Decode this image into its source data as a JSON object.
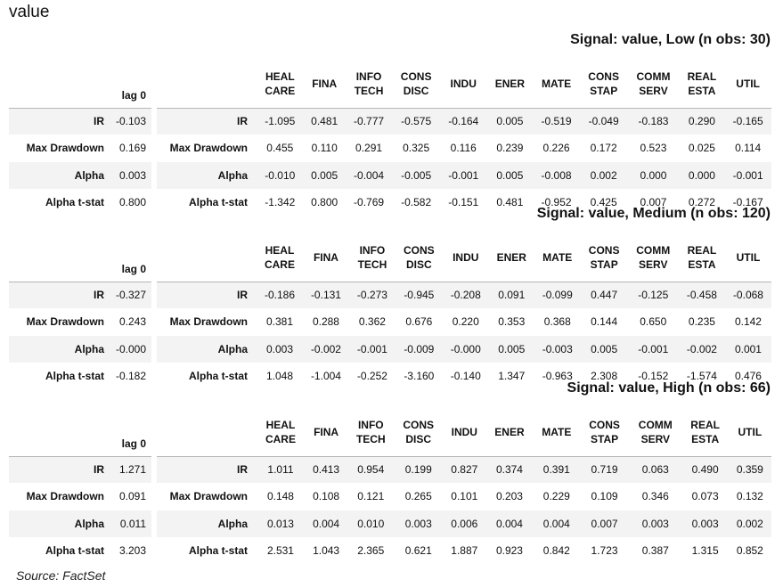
{
  "title": "value",
  "source": "Source: FactSet",
  "columns": {
    "lag": "lag 0",
    "sectors": [
      [
        "HEAL",
        "CARE"
      ],
      [
        "FINA"
      ],
      [
        "INFO",
        "TECH"
      ],
      [
        "CONS",
        "DISC"
      ],
      [
        "INDU"
      ],
      [
        "ENER"
      ],
      [
        "MATE"
      ],
      [
        "CONS",
        "STAP"
      ],
      [
        "COMM",
        "SERV"
      ],
      [
        "REAL",
        "ESTA"
      ],
      [
        "UTIL"
      ]
    ]
  },
  "row_labels": [
    "IR",
    "Max Drawdown",
    "Alpha",
    "Alpha t-stat"
  ],
  "signals": [
    {
      "title": "Signal: value, Low (n obs: 30)",
      "lag": [
        "-0.103",
        "0.169",
        "0.003",
        "0.800"
      ],
      "sectors": [
        [
          "-1.095",
          "0.481",
          "-0.777",
          "-0.575",
          "-0.164",
          "0.005",
          "-0.519",
          "-0.049",
          "-0.183",
          "0.290",
          "-0.165"
        ],
        [
          "0.455",
          "0.110",
          "0.291",
          "0.325",
          "0.116",
          "0.239",
          "0.226",
          "0.172",
          "0.523",
          "0.025",
          "0.114"
        ],
        [
          "-0.010",
          "0.005",
          "-0.004",
          "-0.005",
          "-0.001",
          "0.005",
          "-0.008",
          "0.002",
          "0.000",
          "0.000",
          "-0.001"
        ],
        [
          "-1.342",
          "0.800",
          "-0.769",
          "-0.582",
          "-0.151",
          "0.481",
          "-0.952",
          "0.425",
          "0.007",
          "0.272",
          "-0.167"
        ]
      ]
    },
    {
      "title": "Signal: value, Medium (n obs: 120)",
      "lag": [
        "-0.327",
        "0.243",
        "-0.000",
        "-0.182"
      ],
      "sectors": [
        [
          "-0.186",
          "-0.131",
          "-0.273",
          "-0.945",
          "-0.208",
          "0.091",
          "-0.099",
          "0.447",
          "-0.125",
          "-0.458",
          "-0.068"
        ],
        [
          "0.381",
          "0.288",
          "0.362",
          "0.676",
          "0.220",
          "0.353",
          "0.368",
          "0.144",
          "0.650",
          "0.235",
          "0.142"
        ],
        [
          "0.003",
          "-0.002",
          "-0.001",
          "-0.009",
          "-0.000",
          "0.005",
          "-0.003",
          "0.005",
          "-0.001",
          "-0.002",
          "0.001"
        ],
        [
          "1.048",
          "-1.004",
          "-0.252",
          "-3.160",
          "-0.140",
          "1.347",
          "-0.963",
          "2.308",
          "-0.152",
          "-1.574",
          "0.476"
        ]
      ]
    },
    {
      "title": "Signal: value, High (n obs: 66)",
      "lag": [
        "1.271",
        "0.091",
        "0.011",
        "3.203"
      ],
      "sectors": [
        [
          "1.011",
          "0.413",
          "0.954",
          "0.199",
          "0.827",
          "0.374",
          "0.391",
          "0.719",
          "0.063",
          "0.490",
          "0.359"
        ],
        [
          "0.148",
          "0.108",
          "0.121",
          "0.265",
          "0.101",
          "0.203",
          "0.229",
          "0.109",
          "0.346",
          "0.073",
          "0.132"
        ],
        [
          "0.013",
          "0.004",
          "0.010",
          "0.003",
          "0.006",
          "0.004",
          "0.004",
          "0.007",
          "0.003",
          "0.003",
          "0.002"
        ],
        [
          "2.531",
          "1.043",
          "2.365",
          "0.621",
          "1.887",
          "0.923",
          "0.842",
          "1.723",
          "0.387",
          "1.315",
          "0.852"
        ]
      ]
    }
  ]
}
